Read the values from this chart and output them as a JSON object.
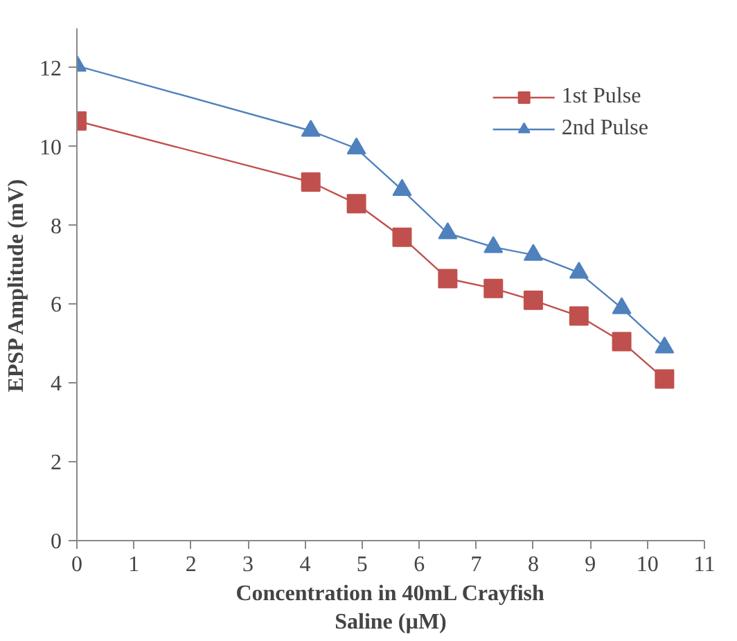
{
  "chart_data": {
    "type": "line",
    "xlabel": "Concentration in 40mL Crayfish Saline (µM)",
    "ylabel": "EPSP Amplitude (mV)",
    "x": [
      0,
      4.1,
      4.9,
      5.7,
      6.5,
      7.3,
      8.0,
      8.8,
      9.55,
      10.3
    ],
    "series": [
      {
        "name": "1st Pulse",
        "color": "#c0504d",
        "marker": "square",
        "values": [
          10.65,
          9.1,
          8.55,
          7.7,
          6.65,
          6.4,
          6.1,
          5.7,
          5.05,
          4.1
        ]
      },
      {
        "name": "2nd Pulse",
        "color": "#4f81bd",
        "marker": "triangle",
        "values": [
          12.05,
          10.4,
          9.95,
          8.9,
          7.8,
          7.45,
          7.25,
          6.8,
          5.9,
          4.9
        ]
      }
    ],
    "xlim": [
      0,
      11
    ],
    "xticks": [
      0,
      1,
      2,
      3,
      4,
      5,
      6,
      7,
      8,
      9,
      10,
      11
    ],
    "ylim": [
      0,
      13
    ],
    "yticks": [
      0,
      2,
      4,
      6,
      8,
      10,
      12
    ],
    "grid": false,
    "legend": "top right"
  }
}
